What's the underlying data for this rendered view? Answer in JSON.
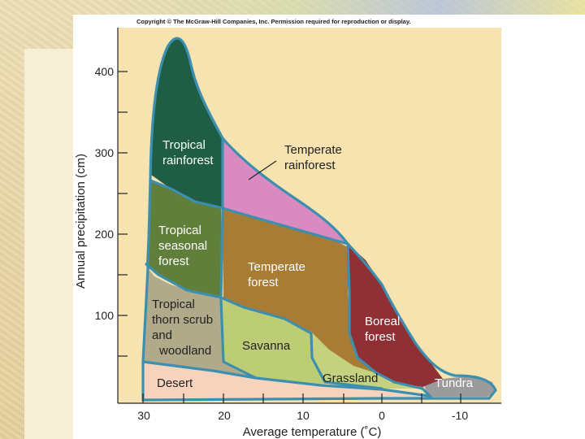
{
  "copyright": "Copyright © The McGraw-Hill Companies, Inc. Permission required for reproduction or display.",
  "diagram": {
    "y_axis_title": "Annual precipitation (cm)",
    "x_axis_title": "Average temperature (˚C)",
    "y_ticks": [
      "400",
      "300",
      "200",
      "100"
    ],
    "x_ticks": [
      "30",
      "20",
      "10",
      "0",
      "-10"
    ],
    "biomes": {
      "tropical_rainforest": [
        "Tropical",
        "rainforest"
      ],
      "temperate_rainforest": [
        "Temperate",
        "rainforest"
      ],
      "tropical_seasonal_forest": [
        "Tropical",
        "seasonal",
        "forest"
      ],
      "temperate_forest": [
        "Temperate",
        "forest"
      ],
      "tropical_thorn_scrub": [
        "Tropical",
        "thorn scrub",
        "and",
        "woodland"
      ],
      "savanna": [
        "Savanna"
      ],
      "boreal_forest": [
        "Boreal",
        "forest"
      ],
      "grassland": [
        "Grassland"
      ],
      "desert": [
        "Desert"
      ],
      "tundra": [
        "Tundra"
      ]
    },
    "colors": {
      "tropical_rainforest": "#1f5e45",
      "temperate_rainforest": "#d98ac0",
      "tropical_seasonal_forest": "#5f7f3a",
      "temperate_forest": "#a87c34",
      "tropical_thorn_scrub": "#b0a98a",
      "savanna": "#bccd76",
      "boreal_forest": "#8e3034",
      "grassland": "#c4d27f",
      "desert": "#f7d3bd",
      "tundra": "#9b9b9b",
      "outline": "#3c8fae"
    }
  }
}
